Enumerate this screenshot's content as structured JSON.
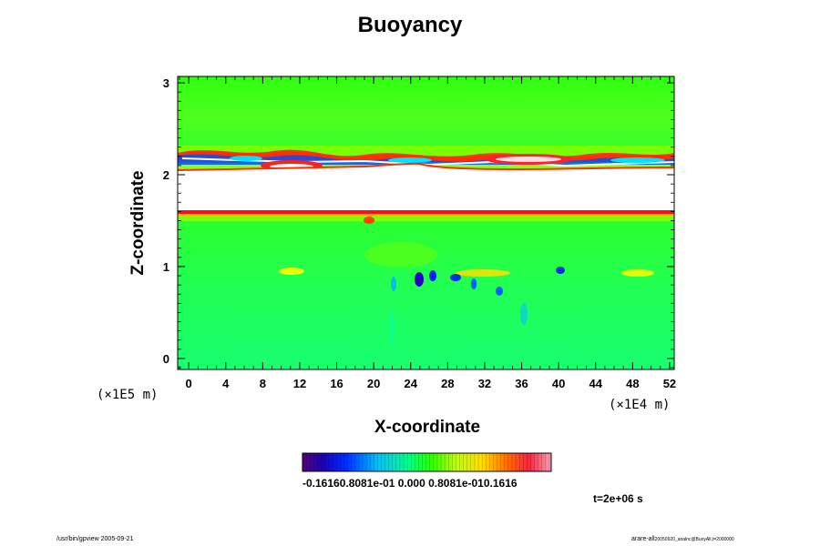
{
  "chart_data": {
    "type": "heatmap",
    "title": "Buoyancy",
    "xlabel": "X-coordinate",
    "ylabel": "Z-coordinate",
    "x_unit": "(×1E4 m)",
    "y_unit": "(×1E5 m)",
    "xlim": [
      -1.2,
      52.5
    ],
    "ylim": [
      -0.12,
      3.07
    ],
    "x_ticks": [
      "0",
      "4",
      "8",
      "12",
      "16",
      "20",
      "24",
      "28",
      "32",
      "36",
      "40",
      "44",
      "48",
      "52"
    ],
    "y_ticks": [
      "0",
      "1",
      "2",
      "3"
    ],
    "colorbar": {
      "min": -0.1616,
      "max": 0.1616,
      "tick_text": "-0.16160.8081e-01 0.000 0.8081e-010.1616",
      "colormap": "rainbow (purple - blue - cyan - green - yellow - red - pink)"
    },
    "background_value": 0.0,
    "features": [
      {
        "kind": "undefined-band (white)",
        "x": [
          -1.2,
          52.5
        ],
        "z": [
          1.62,
          2.08
        ]
      },
      {
        "kind": "positive layer (red)",
        "x": [
          -1.2,
          52.5
        ],
        "z": [
          1.58,
          1.64
        ],
        "value": 0.13
      },
      {
        "kind": "mixed positive/negative filaments",
        "x": [
          -1.2,
          52.5
        ],
        "z": [
          2.08,
          2.32
        ],
        "value_range": [
          -0.12,
          0.16
        ]
      },
      {
        "kind": "negative cells (blue)",
        "x": [
          22,
          41
        ],
        "z": [
          0.75,
          0.95
        ],
        "value": -0.14
      },
      {
        "kind": "weak positive streak (yellow)",
        "x": [
          9,
          51
        ],
        "z": [
          0.88,
          0.96
        ],
        "value": 0.05
      }
    ]
  },
  "time_label": "t=2e+06 s",
  "footer_left": "/usr/bin/gpview 2005-09-21",
  "footer_right_main": "arare-all",
  "footer_right_sub": "20050920_analnc@BuoyAll,t=2000000"
}
